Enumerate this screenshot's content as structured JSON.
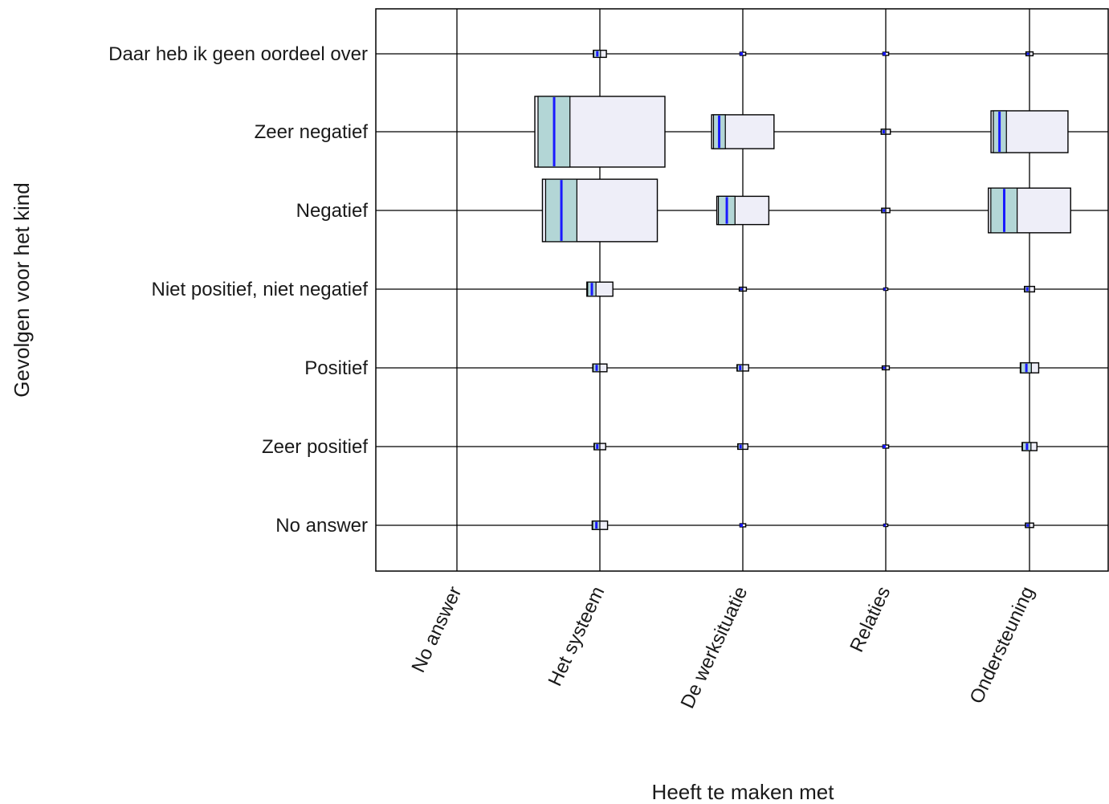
{
  "chart_data": {
    "type": "mosaic",
    "title": "",
    "xlabel": "Heeft te maken met",
    "ylabel": "Gevolgen voor het kind",
    "x_categories": [
      "No answer",
      "Het systeem",
      "De werksituatie",
      "Relaties",
      "Ondersteuning"
    ],
    "y_categories": [
      "Daar heb ik geen oordeel over",
      "Zeer negatief",
      "Negatief",
      "Niet positief, niet negatief",
      "Positief",
      "Zeer positief",
      "No answer"
    ],
    "grid": true,
    "cells": [
      {
        "x": "Het systeem",
        "y": "Daar heb ik geen oordeel over",
        "size": 0.01,
        "split": 0.55
      },
      {
        "x": "De werksituatie",
        "y": "Daar heb ik geen oordeel over",
        "size": 0.002,
        "split": 0.5
      },
      {
        "x": "Relaties",
        "y": "Daar heb ik geen oordeel over",
        "size": 0.002,
        "split": 0.5
      },
      {
        "x": "Ondersteuning",
        "y": "Daar heb ik geen oordeel over",
        "size": 0.003,
        "split": 0.5
      },
      {
        "x": "Het systeem",
        "y": "Zeer negatief",
        "size": 1.0,
        "split": 0.27
      },
      {
        "x": "De werksituatie",
        "y": "Zeer negatief",
        "size": 0.23,
        "split": 0.22
      },
      {
        "x": "Relaties",
        "y": "Zeer negatief",
        "size": 0.005,
        "split": 0.5
      },
      {
        "x": "Ondersteuning",
        "y": "Zeer negatief",
        "size": 0.35,
        "split": 0.2
      },
      {
        "x": "Het systeem",
        "y": "Negatief",
        "size": 0.78,
        "split": 0.3
      },
      {
        "x": "De werksituatie",
        "y": "Negatief",
        "size": 0.16,
        "split": 0.35
      },
      {
        "x": "Relaties",
        "y": "Negatief",
        "size": 0.004,
        "split": 0.5
      },
      {
        "x": "Ondersteuning",
        "y": "Negatief",
        "size": 0.4,
        "split": 0.35
      },
      {
        "x": "Het systeem",
        "y": "Niet positief, niet negatief",
        "size": 0.04,
        "split": 0.35
      },
      {
        "x": "De werksituatie",
        "y": "Niet positief, niet negatief",
        "size": 0.003,
        "split": 0.5
      },
      {
        "x": "Relaties",
        "y": "Niet positief, niet negatief",
        "size": 0.001,
        "split": 0.5
      },
      {
        "x": "Ondersteuning",
        "y": "Niet positief, niet negatief",
        "size": 0.006,
        "split": 0.5
      },
      {
        "x": "Het systeem",
        "y": "Positief",
        "size": 0.012,
        "split": 0.5
      },
      {
        "x": "De werksituatie",
        "y": "Positief",
        "size": 0.008,
        "split": 0.5
      },
      {
        "x": "Relaties",
        "y": "Positief",
        "size": 0.003,
        "split": 0.5
      },
      {
        "x": "Ondersteuning",
        "y": "Positief",
        "size": 0.02,
        "split": 0.6
      },
      {
        "x": "Het systeem",
        "y": "Zeer positief",
        "size": 0.008,
        "split": 0.5
      },
      {
        "x": "De werksituatie",
        "y": "Zeer positief",
        "size": 0.006,
        "split": 0.5
      },
      {
        "x": "Relaties",
        "y": "Zeer positief",
        "size": 0.002,
        "split": 0.5
      },
      {
        "x": "Ondersteuning",
        "y": "Zeer positief",
        "size": 0.013,
        "split": 0.6
      },
      {
        "x": "Het systeem",
        "y": "No answer",
        "size": 0.014,
        "split": 0.5
      },
      {
        "x": "De werksituatie",
        "y": "No answer",
        "size": 0.002,
        "split": 0.5
      },
      {
        "x": "Relaties",
        "y": "No answer",
        "size": 0.001,
        "split": 0.5
      },
      {
        "x": "Ondersteuning",
        "y": "No answer",
        "size": 0.004,
        "split": 0.5
      }
    ],
    "colors": {
      "box_fill": "#eeeef8",
      "observed_fill": "#b3d6d6",
      "marker": "#1a1aff",
      "line": "#000000",
      "grid": "#000000"
    }
  }
}
